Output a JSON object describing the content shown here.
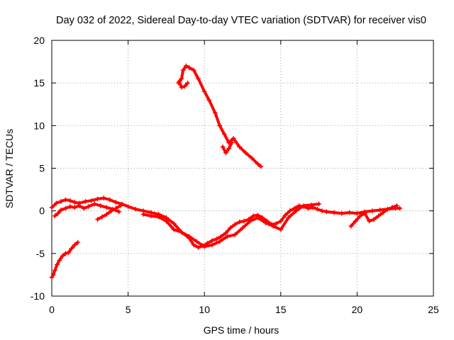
{
  "chart_data": {
    "type": "scatter",
    "title": "Day 032 of 2022, Sidereal Day-to-day VTEC variation (SDTVAR) for receiver vis0",
    "xlabel": "GPS time / hours",
    "ylabel": "SDTVAR / TECUs",
    "xlim": [
      0,
      25
    ],
    "ylim": [
      -10,
      20
    ],
    "x_ticks": [
      0,
      5,
      10,
      15,
      20,
      25
    ],
    "y_ticks": [
      -10,
      -5,
      0,
      5,
      10,
      15,
      20
    ],
    "x_tick_labels": [
      "0",
      "5",
      "10",
      "15",
      "20",
      "25"
    ],
    "y_tick_labels": [
      "-10",
      "-5",
      "0",
      "5",
      "10",
      "15",
      "20"
    ],
    "grid": true,
    "color": "#ff0000",
    "series": [
      {
        "name": "track-a",
        "x": [
          0.0,
          0.1,
          0.2,
          0.35,
          0.5,
          0.7,
          0.9,
          1.1,
          1.3,
          1.5,
          1.7
        ],
        "y": [
          -7.8,
          -7.5,
          -7.0,
          -6.3,
          -5.8,
          -5.3,
          -5.0,
          -4.9,
          -4.4,
          -4.0,
          -3.7
        ]
      },
      {
        "name": "track-b",
        "x": [
          8.3,
          8.5,
          8.6,
          8.8,
          9.0,
          9.3,
          9.6,
          10.0,
          10.3,
          10.7,
          11.0,
          11.3,
          11.6,
          11.9,
          12.3,
          12.7,
          13.1,
          13.5,
          13.7
        ],
        "y": [
          15.0,
          15.5,
          16.5,
          17.0,
          16.8,
          16.5,
          15.5,
          14.0,
          13.0,
          11.5,
          10.0,
          9.0,
          8.0,
          8.5,
          7.5,
          6.8,
          6.2,
          5.5,
          5.2
        ]
      },
      {
        "name": "track-b-branch",
        "x": [
          8.35,
          8.5,
          8.7,
          8.9
        ],
        "y": [
          15.2,
          14.5,
          14.6,
          15.0
        ]
      },
      {
        "name": "track-b-dip",
        "x": [
          11.2,
          11.4,
          11.6,
          11.8
        ],
        "y": [
          7.5,
          6.8,
          7.3,
          8.0
        ]
      },
      {
        "name": "track-c",
        "x": [
          0.0,
          0.3,
          0.6,
          0.9,
          1.2,
          1.5,
          1.8,
          2.2,
          2.6,
          3.0,
          3.4,
          3.8,
          4.2,
          4.6,
          5.0,
          5.5,
          6.0,
          6.5,
          7.0,
          7.5,
          8.0,
          8.5,
          9.0,
          9.3,
          9.6,
          9.9,
          10.2,
          10.5,
          10.8,
          11.1,
          11.4,
          11.7,
          12.0,
          12.3,
          12.6,
          12.9,
          13.2,
          13.5,
          13.8,
          14.1,
          14.4,
          14.7,
          15.0,
          15.3,
          15.6,
          15.9,
          16.2,
          16.5,
          16.8,
          17.1,
          17.4,
          17.7,
          18.0,
          18.5,
          19.0,
          19.5,
          20.0,
          20.5,
          21.0,
          21.5,
          22.0,
          22.5,
          22.8
        ],
        "y": [
          0.4,
          0.9,
          1.1,
          1.3,
          1.2,
          1.0,
          0.9,
          1.1,
          1.2,
          1.4,
          1.5,
          1.3,
          1.0,
          0.8,
          0.5,
          0.2,
          0.0,
          -0.2,
          -0.4,
          -0.8,
          -1.5,
          -2.5,
          -3.2,
          -4.0,
          -4.3,
          -4.1,
          -3.8,
          -3.5,
          -3.3,
          -3.0,
          -2.6,
          -2.0,
          -1.6,
          -1.3,
          -1.2,
          -1.0,
          -0.6,
          -0.5,
          -0.8,
          -1.2,
          -1.6,
          -1.5,
          -1.2,
          -0.5,
          0.0,
          0.3,
          0.6,
          0.5,
          0.3,
          0.4,
          0.2,
          0.0,
          -0.1,
          -0.2,
          -0.3,
          -0.2,
          -0.3,
          -0.1,
          0.0,
          0.1,
          0.2,
          0.3,
          0.3
        ]
      },
      {
        "name": "track-d",
        "x": [
          0.2,
          0.4,
          0.6,
          0.9,
          1.2,
          1.5,
          1.8,
          2.1,
          2.4,
          2.8,
          3.2,
          3.6,
          4.0,
          4.4
        ],
        "y": [
          -0.6,
          -0.3,
          0.1,
          0.3,
          0.5,
          0.4,
          0.6,
          0.3,
          0.5,
          0.8,
          0.6,
          0.4,
          0.2,
          -0.1
        ]
      },
      {
        "name": "track-e",
        "x": [
          3.0,
          3.3,
          3.6,
          3.9,
          4.2,
          4.5
        ],
        "y": [
          -1.0,
          -0.7,
          -0.4,
          0.0,
          0.3,
          0.6
        ]
      },
      {
        "name": "track-f",
        "x": [
          6.0,
          6.5,
          7.0,
          7.5,
          8.0,
          8.5,
          9.0,
          9.5,
          10.0,
          10.5,
          11.0,
          11.5,
          12.0,
          12.5,
          13.0,
          13.5,
          14.0,
          14.5,
          15.0,
          15.5,
          16.0,
          16.5,
          17.0,
          17.5
        ],
        "y": [
          -0.4,
          -0.6,
          -0.7,
          -1.2,
          -2.2,
          -2.5,
          -3.0,
          -3.6,
          -4.2,
          -4.0,
          -3.6,
          -3.0,
          -2.8,
          -2.0,
          -1.2,
          -0.8,
          -1.4,
          -1.8,
          -2.2,
          -0.8,
          0.0,
          0.6,
          0.7,
          0.8
        ]
      },
      {
        "name": "track-g",
        "x": [
          19.6,
          19.9,
          20.2,
          20.5,
          20.8,
          21.1,
          21.4,
          21.7,
          22.0,
          22.3,
          22.6
        ],
        "y": [
          -1.8,
          -1.2,
          -0.6,
          -0.3,
          -1.2,
          -1.0,
          -0.6,
          -0.2,
          0.2,
          0.4,
          0.6
        ]
      }
    ]
  }
}
